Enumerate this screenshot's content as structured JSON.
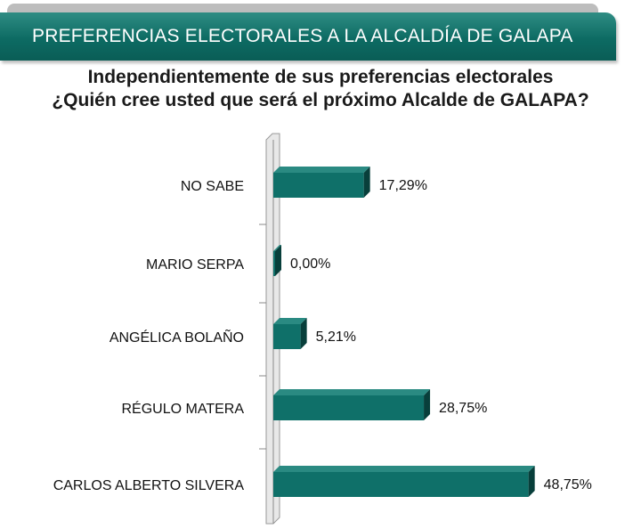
{
  "header": {
    "title": "PREFERENCIAS ELECTORALES A LA ALCALDÍA DE GALAPA"
  },
  "question": {
    "line1": "Independientemente de sus preferencias electorales",
    "line2": "¿Quién cree usted que será el próximo Alcalde de GALAPA?"
  },
  "colors": {
    "header": "#0d6b63",
    "bar_front": "#0f7069",
    "bar_top": "#2a8a82",
    "bar_side": "#083f3b",
    "axis_wall": "#e8e8e8"
  },
  "chart_data": {
    "type": "bar",
    "orientation": "horizontal",
    "categories": [
      "NO SABE",
      "MARIO SERPA",
      "ANGÉLICA BOLAÑO",
      "RÉGULO MATERA",
      "CARLOS ALBERTO SILVERA"
    ],
    "values": [
      17.29,
      0.0,
      5.21,
      28.75,
      48.75
    ],
    "value_labels": [
      "17,29%",
      "0,00%",
      "5,21%",
      "28,75%",
      "48,75%"
    ],
    "xlim": [
      0,
      50
    ],
    "grid": false,
    "style": "3d"
  }
}
